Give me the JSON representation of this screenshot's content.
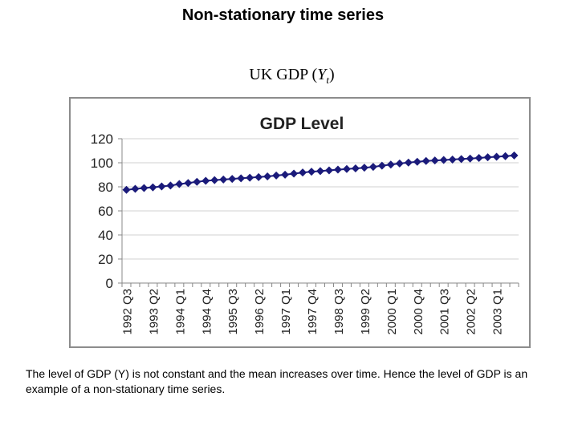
{
  "page": {
    "title": "Non-stationary time series",
    "subtitle_prefix": "UK GDP (",
    "subtitle_var": "Y",
    "subtitle_sub": "t",
    "subtitle_suffix": ")",
    "caption": "The level of GDP (Y) is not constant and the mean increases over time. Hence the level of GDP is an example of a non-stationary time series."
  },
  "chart_data": {
    "type": "line",
    "title": "GDP Level",
    "xlabel": "",
    "ylabel": "",
    "ylim": [
      0,
      120
    ],
    "yticks": [
      0,
      20,
      40,
      60,
      80,
      100,
      120
    ],
    "grid": true,
    "marker": "diamond",
    "series_color": "#1a1a7a",
    "tick_labels": [
      "1992 Q3",
      "1993 Q2",
      "1994 Q1",
      "1994 Q4",
      "1995 Q3",
      "1996 Q2",
      "1997 Q1",
      "1997 Q4",
      "1998 Q3",
      "1999 Q2",
      "2000 Q1",
      "2000 Q4",
      "2001 Q3",
      "2002 Q2",
      "2003 Q1"
    ],
    "categories": [
      "1992 Q3",
      "1992 Q4",
      "1993 Q1",
      "1993 Q2",
      "1993 Q3",
      "1993 Q4",
      "1994 Q1",
      "1994 Q2",
      "1994 Q3",
      "1994 Q4",
      "1995 Q1",
      "1995 Q2",
      "1995 Q3",
      "1995 Q4",
      "1996 Q1",
      "1996 Q2",
      "1996 Q3",
      "1996 Q4",
      "1997 Q1",
      "1997 Q2",
      "1997 Q3",
      "1997 Q4",
      "1998 Q1",
      "1998 Q2",
      "1998 Q3",
      "1998 Q4",
      "1999 Q1",
      "1999 Q2",
      "1999 Q3",
      "1999 Q4",
      "2000 Q1",
      "2000 Q2",
      "2000 Q3",
      "2000 Q4",
      "2001 Q1",
      "2001 Q2",
      "2001 Q3",
      "2001 Q4",
      "2002 Q1",
      "2002 Q2",
      "2002 Q3",
      "2002 Q4",
      "2003 Q1",
      "2003 Q2",
      "2003 Q3"
    ],
    "series": [
      {
        "name": "GDP Level",
        "values": [
          77.5,
          78.3,
          79.0,
          79.6,
          80.3,
          81.1,
          82.3,
          83.2,
          84.2,
          85.0,
          85.6,
          86.1,
          86.6,
          87.1,
          87.6,
          88.1,
          88.7,
          89.4,
          90.1,
          91.0,
          91.9,
          92.6,
          93.1,
          93.7,
          94.3,
          94.8,
          95.3,
          95.9,
          96.6,
          97.6,
          98.5,
          99.4,
          100.2,
          100.8,
          101.5,
          101.9,
          102.3,
          102.7,
          103.1,
          103.5,
          104.0,
          104.6,
          105.0,
          105.5,
          106.1
        ]
      }
    ]
  }
}
